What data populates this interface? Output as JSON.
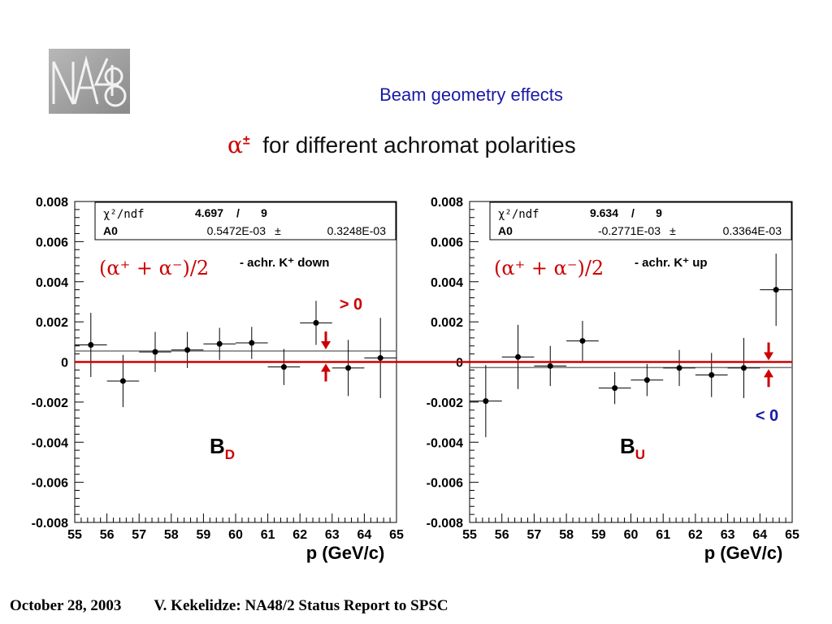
{
  "logo": {
    "text": "NA48"
  },
  "title": "Beam geometry effects",
  "subtitle": {
    "symbol": "α",
    "symbol_sup": "±",
    "text": "for different achromat polarities"
  },
  "colors": {
    "title": "#1a1aa6",
    "accent": "#cc0000",
    "overlay_blue": "#1a1aa6",
    "fit_line": "#777777"
  },
  "footer": {
    "date": "October 28, 2003",
    "author": "V. Kekelidze: NA48/2 Status Report to SPSC"
  },
  "chart_data": [
    {
      "type": "scatter",
      "xlabel": "p (GeV/c)",
      "xlim": [
        55,
        65
      ],
      "ylim": [
        -0.008,
        0.008
      ],
      "xticks": [
        "55",
        "56",
        "57",
        "58",
        "59",
        "60",
        "61",
        "62",
        "63",
        "64",
        "65"
      ],
      "yticks": [
        "0.008",
        "0.006",
        "0.004",
        "0.002",
        "0",
        "-0.002",
        "-0.004",
        "-0.006",
        "-0.008"
      ],
      "stats": {
        "row1": {
          "label": "χ²/ndf",
          "val1": "4.697",
          "sep": "/",
          "val2": "9"
        },
        "row2": {
          "label": "A0",
          "val1": "0.5472E-03",
          "sep": "±",
          "val2": "0.3248E-03"
        }
      },
      "fit_value": 0.000547,
      "formula": "(α⁺ + α⁻)/2",
      "note": "- achr. K⁺ down",
      "sign_label": "> 0",
      "sign": "positive",
      "panel_label": "B",
      "panel_sub": "D",
      "points": [
        {
          "x": 55.5,
          "y": 0.00085,
          "err": 0.0016
        },
        {
          "x": 56.5,
          "y": -0.00095,
          "err": 0.0013
        },
        {
          "x": 57.5,
          "y": 0.0005,
          "err": 0.001
        },
        {
          "x": 58.5,
          "y": 0.0006,
          "err": 0.0009
        },
        {
          "x": 59.5,
          "y": 0.0009,
          "err": 0.0008
        },
        {
          "x": 60.5,
          "y": 0.00095,
          "err": 0.0008
        },
        {
          "x": 61.5,
          "y": -0.00025,
          "err": 0.0009
        },
        {
          "x": 62.5,
          "y": 0.00195,
          "err": 0.0011
        },
        {
          "x": 63.5,
          "y": -0.0003,
          "err": 0.0014
        },
        {
          "x": 64.5,
          "y": 0.0002,
          "err": 0.002
        }
      ]
    },
    {
      "type": "scatter",
      "xlabel": "p (GeV/c)",
      "xlim": [
        55,
        65
      ],
      "ylim": [
        -0.008,
        0.008
      ],
      "xticks": [
        "55",
        "56",
        "57",
        "58",
        "59",
        "60",
        "61",
        "62",
        "63",
        "64",
        "65"
      ],
      "yticks": [
        "0.008",
        "0.006",
        "0.004",
        "0.002",
        "0",
        "-0.002",
        "-0.004",
        "-0.006",
        "-0.008"
      ],
      "stats": {
        "row1": {
          "label": "χ²/ndf",
          "val1": "9.634",
          "sep": "/",
          "val2": "9"
        },
        "row2": {
          "label": "A0",
          "val1": "-0.2771E-03",
          "sep": "±",
          "val2": "0.3364E-03"
        }
      },
      "fit_value": -0.000277,
      "formula": "(α⁺ + α⁻)/2",
      "note": "- achr. K⁺ up",
      "sign_label": "< 0",
      "sign": "negative",
      "panel_label": "B",
      "panel_sub": "U",
      "points": [
        {
          "x": 55.5,
          "y": -0.00195,
          "err": 0.0018
        },
        {
          "x": 56.5,
          "y": 0.00025,
          "err": 0.0016
        },
        {
          "x": 57.5,
          "y": -0.0002,
          "err": 0.001
        },
        {
          "x": 58.5,
          "y": 0.00105,
          "err": 0.001
        },
        {
          "x": 59.5,
          "y": -0.0013,
          "err": 0.0008
        },
        {
          "x": 60.5,
          "y": -0.0009,
          "err": 0.0008
        },
        {
          "x": 61.5,
          "y": -0.0003,
          "err": 0.0009
        },
        {
          "x": 62.5,
          "y": -0.00065,
          "err": 0.0011
        },
        {
          "x": 63.5,
          "y": -0.0003,
          "err": 0.0015
        },
        {
          "x": 64.5,
          "y": 0.0036,
          "err": 0.0018
        }
      ]
    }
  ]
}
